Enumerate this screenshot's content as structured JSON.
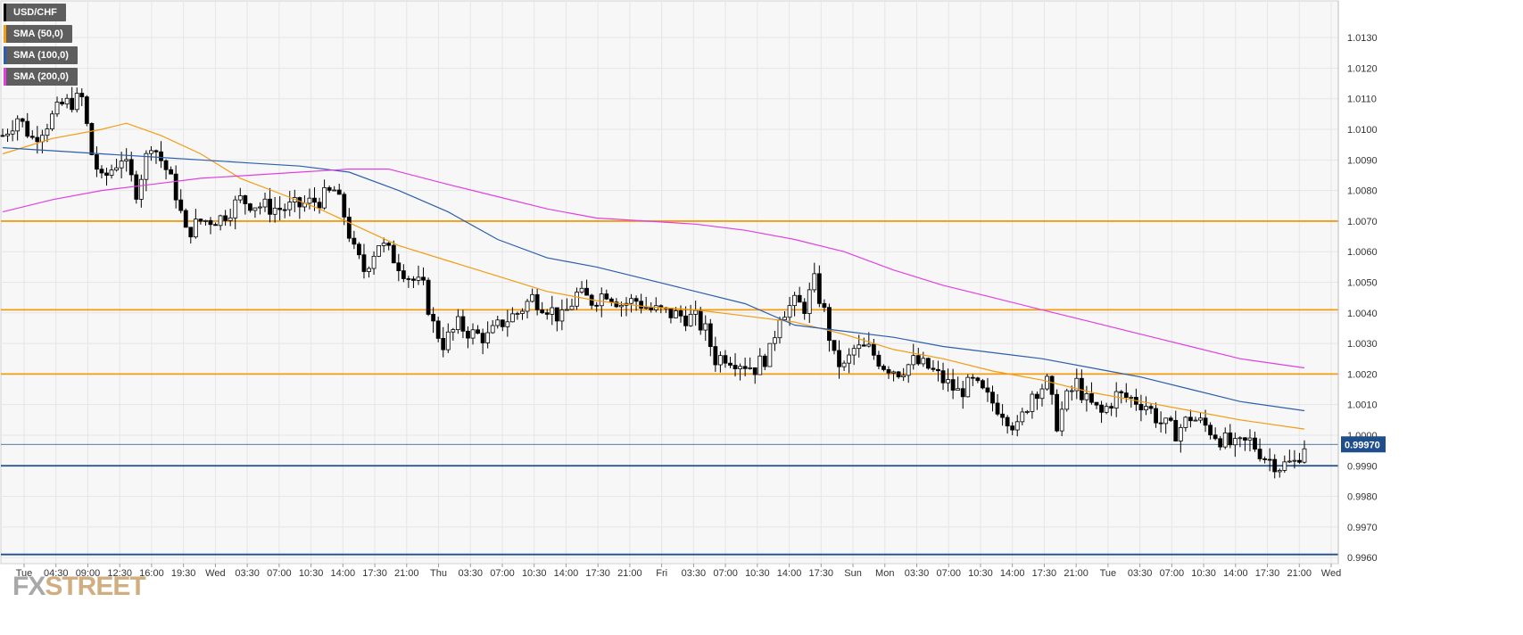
{
  "chart_data": {
    "type": "candlestick",
    "symbol": "USD/CHF",
    "ylim": [
      0.9958,
      1.0142
    ],
    "y_ticks": [
      "1.0130",
      "1.0120",
      "1.0110",
      "1.0100",
      "1.0090",
      "1.0080",
      "1.0070",
      "1.0060",
      "1.0050",
      "1.0040",
      "1.0030",
      "1.0020",
      "1.0010",
      "1.0000",
      "0.9990",
      "0.9980",
      "0.9970",
      "0.9960"
    ],
    "x_labels": [
      "Tue",
      "04:30",
      "09:00",
      "12:30",
      "16:00",
      "19:30",
      "Wed",
      "03:30",
      "07:00",
      "10:30",
      "14:00",
      "17:30",
      "21:00",
      "Thu",
      "03:30",
      "07:00",
      "10:30",
      "14:00",
      "17:30",
      "21:00",
      "Fri",
      "03:30",
      "07:00",
      "10:30",
      "14:00",
      "17:30",
      "Sun",
      "Mon",
      "03:30",
      "07:00",
      "10:30",
      "14:00",
      "17:30",
      "21:00",
      "Tue",
      "03:30",
      "07:00",
      "10:30",
      "14:00",
      "17:30",
      "21:00",
      "Wed"
    ],
    "current_price": 0.9997,
    "current_price_label": "0.99970",
    "horizontal_levels": [
      {
        "value": 1.007,
        "color": "#f39c12"
      },
      {
        "value": 1.0041,
        "color": "#f39c12"
      },
      {
        "value": 1.002,
        "color": "#f39c12"
      },
      {
        "value": 0.999,
        "color": "#1f4e8c"
      },
      {
        "value": 0.9961,
        "color": "#1f4e8c"
      }
    ],
    "close_path": [
      [
        0,
        1.0098
      ],
      [
        3,
        1.0104
      ],
      [
        6,
        1.0097
      ],
      [
        9,
        1.0102
      ],
      [
        12,
        1.0108
      ],
      [
        16,
        1.011
      ],
      [
        18,
        1.0092
      ],
      [
        20,
        1.0083
      ],
      [
        24,
        1.0091
      ],
      [
        27,
        1.008
      ],
      [
        30,
        1.0096
      ],
      [
        33,
        1.0087
      ],
      [
        35,
        1.0079
      ],
      [
        37,
        1.0066
      ],
      [
        40,
        1.007
      ],
      [
        44,
        1.0071
      ],
      [
        48,
        1.0077
      ],
      [
        52,
        1.0075
      ],
      [
        56,
        1.0074
      ],
      [
        60,
        1.0075
      ],
      [
        64,
        1.0077
      ],
      [
        67,
        1.008
      ],
      [
        69,
        1.0072
      ],
      [
        71,
        1.006
      ],
      [
        73,
        1.0054
      ],
      [
        76,
        1.0063
      ],
      [
        79,
        1.0058
      ],
      [
        82,
        1.0052
      ],
      [
        85,
        1.0048
      ],
      [
        87,
        1.0036
      ],
      [
        89,
        1.003
      ],
      [
        92,
        1.0036
      ],
      [
        95,
        1.0033
      ],
      [
        98,
        1.0032
      ],
      [
        101,
        1.0037
      ],
      [
        104,
        1.004
      ],
      [
        107,
        1.0045
      ],
      [
        110,
        1.0042
      ],
      [
        113,
        1.0038
      ],
      [
        116,
        1.0046
      ],
      [
        119,
        1.0044
      ],
      [
        122,
        1.0047
      ],
      [
        125,
        1.0043
      ],
      [
        128,
        1.0044
      ],
      [
        131,
        1.0041
      ],
      [
        134,
        1.004
      ],
      [
        137,
        1.0039
      ],
      [
        140,
        1.0038
      ],
      [
        142,
        1.0034
      ],
      [
        144,
        1.0025
      ],
      [
        146,
        1.0026
      ],
      [
        149,
        1.0024
      ],
      [
        152,
        1.0022
      ],
      [
        155,
        1.0027
      ],
      [
        157,
        1.004
      ],
      [
        160,
        1.0043
      ],
      [
        162,
        1.0042
      ],
      [
        164,
        1.005
      ],
      [
        166,
        1.004
      ],
      [
        168,
        1.0025
      ],
      [
        170,
        1.0022
      ],
      [
        172,
        1.0028
      ],
      [
        175,
        1.0028
      ],
      [
        178,
        1.0023
      ],
      [
        181,
        1.0021
      ],
      [
        184,
        1.0024
      ],
      [
        187,
        1.0022
      ],
      [
        190,
        1.0018
      ],
      [
        193,
        1.0014
      ],
      [
        196,
        1.0017
      ],
      [
        199,
        1.0012
      ],
      [
        202,
        1.0008
      ],
      [
        205,
        1.0002
      ],
      [
        208,
        1.0014
      ],
      [
        211,
        1.0017
      ],
      [
        213,
        1.0004
      ],
      [
        215,
        1.0012
      ],
      [
        217,
        1.0017
      ],
      [
        219,
        1.0011
      ],
      [
        222,
        1.0007
      ],
      [
        225,
        1.0013
      ],
      [
        228,
        1.0012
      ],
      [
        231,
        1.001
      ],
      [
        234,
        1.0004
      ],
      [
        237,
        1.0001
      ],
      [
        240,
        1.0006
      ],
      [
        243,
        1.0003
      ],
      [
        246,
        0.9999
      ],
      [
        249,
        0.9996
      ],
      [
        252,
        0.9998
      ],
      [
        255,
        0.9993
      ],
      [
        258,
        0.999
      ],
      [
        261,
        0.9991
      ],
      [
        263,
        0.9997
      ]
    ],
    "candle_count": 264,
    "legend": [
      {
        "label": "USD/CHF",
        "color": "#000000"
      },
      {
        "label": "SMA (50,0)",
        "color": "#f39c12"
      },
      {
        "label": "SMA (100,0)",
        "color": "#2b5fad"
      },
      {
        "label": "SMA (200,0)",
        "color": "#e040e0"
      }
    ],
    "sma": [
      {
        "name": "SMA (50,0)",
        "color": "#f39c12",
        "points": [
          [
            0,
            1.0092
          ],
          [
            10,
            1.0097
          ],
          [
            20,
            1.01
          ],
          [
            25,
            1.0102
          ],
          [
            32,
            1.0098
          ],
          [
            40,
            1.0092
          ],
          [
            48,
            1.0084
          ],
          [
            56,
            1.0079
          ],
          [
            64,
            1.0074
          ],
          [
            72,
            1.0068
          ],
          [
            80,
            1.0062
          ],
          [
            90,
            1.0057
          ],
          [
            100,
            1.0052
          ],
          [
            110,
            1.0047
          ],
          [
            120,
            1.0044
          ],
          [
            130,
            1.0042
          ],
          [
            140,
            1.0041
          ],
          [
            150,
            1.0039
          ],
          [
            160,
            1.0037
          ],
          [
            170,
            1.0033
          ],
          [
            180,
            1.0028
          ],
          [
            190,
            1.0025
          ],
          [
            200,
            1.0021
          ],
          [
            210,
            1.0018
          ],
          [
            220,
            1.0014
          ],
          [
            230,
            1.0011
          ],
          [
            240,
            1.0008
          ],
          [
            250,
            1.0005
          ],
          [
            263,
            1.0002
          ]
        ]
      },
      {
        "name": "SMA (100,0)",
        "color": "#2b5fad",
        "points": [
          [
            0,
            1.0094
          ],
          [
            10,
            1.0093
          ],
          [
            20,
            1.0092
          ],
          [
            30,
            1.0091
          ],
          [
            40,
            1.009
          ],
          [
            50,
            1.0089
          ],
          [
            60,
            1.0088
          ],
          [
            70,
            1.0086
          ],
          [
            80,
            1.008
          ],
          [
            90,
            1.0073
          ],
          [
            100,
            1.0064
          ],
          [
            110,
            1.0058
          ],
          [
            120,
            1.0055
          ],
          [
            130,
            1.0051
          ],
          [
            140,
            1.0047
          ],
          [
            150,
            1.0043
          ],
          [
            160,
            1.0036
          ],
          [
            170,
            1.0034
          ],
          [
            180,
            1.0032
          ],
          [
            190,
            1.0029
          ],
          [
            200,
            1.0027
          ],
          [
            210,
            1.0025
          ],
          [
            220,
            1.0022
          ],
          [
            230,
            1.0019
          ],
          [
            240,
            1.0015
          ],
          [
            250,
            1.0011
          ],
          [
            263,
            1.0008
          ]
        ]
      },
      {
        "name": "SMA (200,0)",
        "color": "#e040e0",
        "points": [
          [
            0,
            1.0073
          ],
          [
            10,
            1.0077
          ],
          [
            20,
            1.008
          ],
          [
            30,
            1.0082
          ],
          [
            40,
            1.0084
          ],
          [
            50,
            1.0085
          ],
          [
            60,
            1.0086
          ],
          [
            70,
            1.0087
          ],
          [
            78,
            1.0087
          ],
          [
            90,
            1.0082
          ],
          [
            100,
            1.0078
          ],
          [
            110,
            1.0074
          ],
          [
            120,
            1.0071
          ],
          [
            130,
            1.007
          ],
          [
            140,
            1.0069
          ],
          [
            150,
            1.0067
          ],
          [
            160,
            1.0064
          ],
          [
            170,
            1.006
          ],
          [
            180,
            1.0054
          ],
          [
            190,
            1.0049
          ],
          [
            200,
            1.0045
          ],
          [
            210,
            1.0041
          ],
          [
            220,
            1.0037
          ],
          [
            230,
            1.0033
          ],
          [
            240,
            1.0029
          ],
          [
            250,
            1.0025
          ],
          [
            263,
            1.0022
          ]
        ]
      }
    ]
  },
  "logo": {
    "fx": "FX",
    "street": "STREET"
  }
}
